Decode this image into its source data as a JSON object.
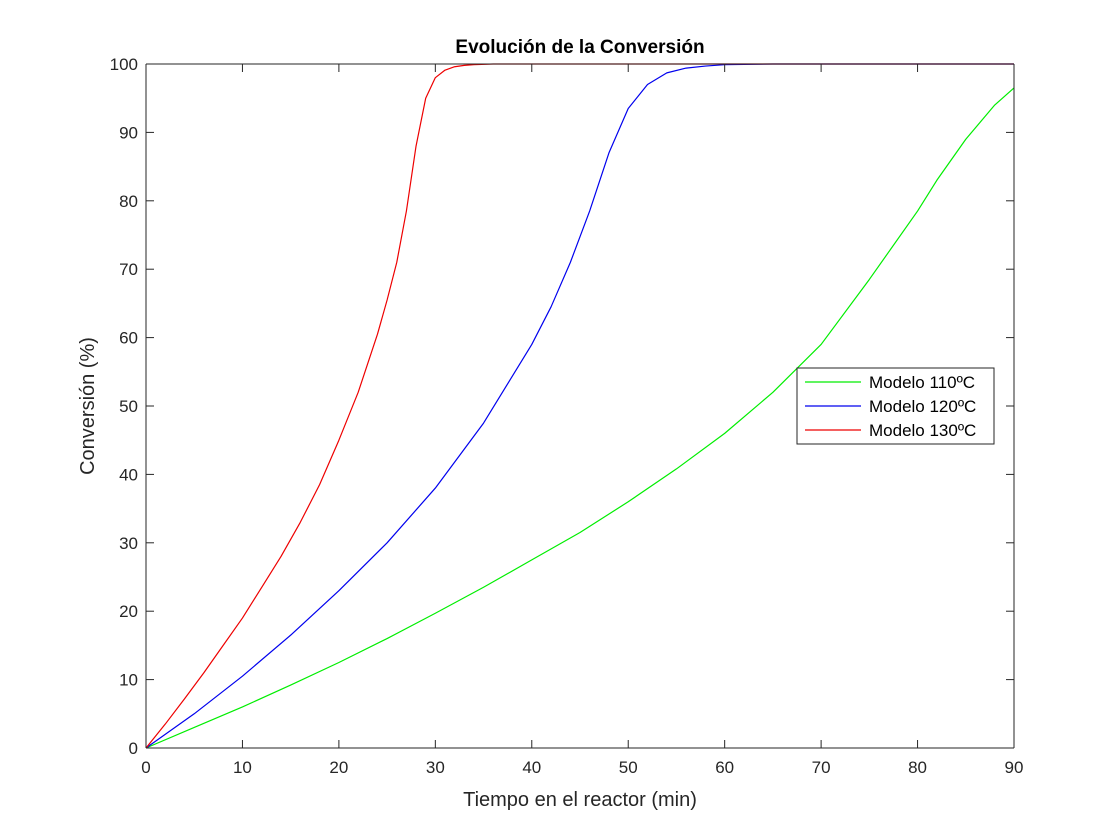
{
  "chart_data": {
    "type": "line",
    "title": "Evolución de la Conversión",
    "xlabel": "Tiempo en el reactor (min)",
    "ylabel": "Conversión (%)",
    "xlim": [
      0,
      90
    ],
    "ylim": [
      0,
      100
    ],
    "xticks": [
      0,
      10,
      20,
      30,
      40,
      50,
      60,
      70,
      80,
      90
    ],
    "yticks": [
      0,
      10,
      20,
      30,
      40,
      50,
      60,
      70,
      80,
      90,
      100
    ],
    "grid": false,
    "legend_position": "right",
    "series": [
      {
        "name": "Modelo 110ºC",
        "color": "#00ee00",
        "x": [
          0,
          5,
          10,
          15,
          20,
          25,
          30,
          35,
          40,
          45,
          50,
          55,
          60,
          65,
          70,
          75,
          80,
          82,
          85,
          88,
          90
        ],
        "y": [
          0,
          3,
          6,
          9.2,
          12.5,
          16,
          19.7,
          23.5,
          27.5,
          31.5,
          36,
          40.8,
          46,
          52,
          59,
          68.5,
          78.5,
          83,
          89,
          94,
          96.5
        ]
      },
      {
        "name": "Modelo 120ºC",
        "color": "#0000ee",
        "x": [
          0,
          5,
          10,
          15,
          20,
          25,
          30,
          35,
          40,
          42,
          44,
          46,
          48,
          50,
          52,
          54,
          56,
          58,
          60,
          65,
          70,
          80,
          90
        ],
        "y": [
          0,
          5,
          10.5,
          16.5,
          23,
          30,
          38,
          47.5,
          59,
          64.5,
          71,
          78.5,
          87,
          93.5,
          97,
          98.7,
          99.4,
          99.7,
          99.9,
          100,
          100,
          100,
          100
        ]
      },
      {
        "name": "Modelo 130ºC",
        "color": "#ee0000",
        "x": [
          0,
          2,
          4,
          6,
          8,
          10,
          12,
          14,
          16,
          18,
          20,
          22,
          24,
          25,
          26,
          27,
          28,
          29,
          30,
          31,
          32,
          33,
          34,
          36,
          40,
          50,
          60,
          70,
          80,
          90
        ],
        "y": [
          0,
          3.5,
          7.2,
          11,
          15,
          19,
          23.5,
          28,
          33,
          38.5,
          45,
          52,
          60.5,
          65.5,
          71,
          78.5,
          88,
          95,
          98,
          99.1,
          99.6,
          99.8,
          99.9,
          100,
          100,
          100,
          100,
          100,
          100,
          100
        ]
      }
    ]
  }
}
